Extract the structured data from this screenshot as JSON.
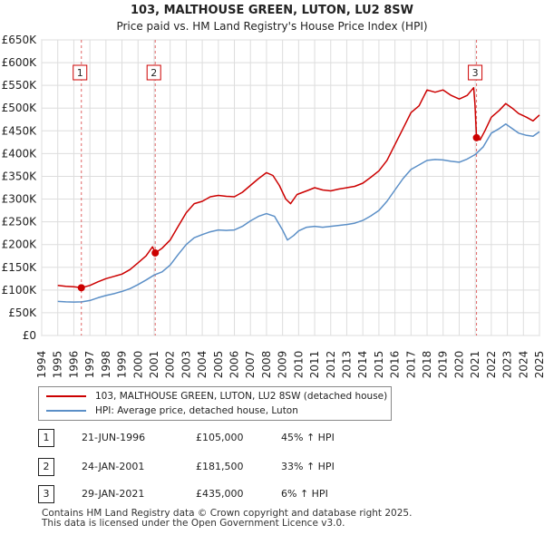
{
  "chart_data": {
    "type": "line",
    "title": "103, MALTHOUSE GREEN, LUTON, LU2 8SW",
    "subtitle": "Price paid vs. HM Land Registry's House Price Index (HPI)",
    "ylim": [
      0,
      650000
    ],
    "xlim": [
      1994,
      2025
    ],
    "y_ticks": [
      0,
      50000,
      100000,
      150000,
      200000,
      250000,
      300000,
      350000,
      400000,
      450000,
      500000,
      550000,
      600000,
      650000
    ],
    "y_tick_labels": [
      "£0",
      "£50K",
      "£100K",
      "£150K",
      "£200K",
      "£250K",
      "£300K",
      "£350K",
      "£400K",
      "£450K",
      "£500K",
      "£550K",
      "£600K",
      "£650K"
    ],
    "x_ticks": [
      1994,
      1995,
      1996,
      1997,
      1998,
      1999,
      2000,
      2001,
      2002,
      2003,
      2004,
      2005,
      2006,
      2007,
      2008,
      2009,
      2010,
      2011,
      2012,
      2013,
      2014,
      2015,
      2016,
      2017,
      2018,
      2019,
      2020,
      2021,
      2022,
      2023,
      2024,
      2025
    ],
    "grid": true,
    "series": [
      {
        "name": "103, MALTHOUSE GREEN, LUTON, LU2 8SW (detached house)",
        "color": "#cc0000",
        "points": [
          [
            1995.0,
            110000
          ],
          [
            1995.5,
            108000
          ],
          [
            1996.0,
            107000
          ],
          [
            1996.47,
            105000
          ],
          [
            1997.0,
            110000
          ],
          [
            1997.5,
            118000
          ],
          [
            1998.0,
            125000
          ],
          [
            1998.5,
            130000
          ],
          [
            1999.0,
            135000
          ],
          [
            1999.5,
            145000
          ],
          [
            2000.0,
            160000
          ],
          [
            2000.5,
            175000
          ],
          [
            2000.9,
            195000
          ],
          [
            2001.07,
            181500
          ],
          [
            2001.5,
            192000
          ],
          [
            2002.0,
            210000
          ],
          [
            2002.5,
            240000
          ],
          [
            2003.0,
            270000
          ],
          [
            2003.5,
            290000
          ],
          [
            2004.0,
            295000
          ],
          [
            2004.5,
            305000
          ],
          [
            2005.0,
            308000
          ],
          [
            2005.5,
            306000
          ],
          [
            2006.0,
            305000
          ],
          [
            2006.5,
            315000
          ],
          [
            2007.0,
            330000
          ],
          [
            2007.5,
            345000
          ],
          [
            2008.0,
            358000
          ],
          [
            2008.4,
            352000
          ],
          [
            2008.8,
            330000
          ],
          [
            2009.2,
            300000
          ],
          [
            2009.5,
            290000
          ],
          [
            2009.9,
            310000
          ],
          [
            2010.5,
            318000
          ],
          [
            2011.0,
            325000
          ],
          [
            2011.5,
            320000
          ],
          [
            2012.0,
            318000
          ],
          [
            2012.5,
            322000
          ],
          [
            2013.0,
            325000
          ],
          [
            2013.5,
            328000
          ],
          [
            2014.0,
            335000
          ],
          [
            2014.5,
            348000
          ],
          [
            2015.0,
            362000
          ],
          [
            2015.5,
            385000
          ],
          [
            2016.0,
            420000
          ],
          [
            2016.5,
            455000
          ],
          [
            2017.0,
            490000
          ],
          [
            2017.5,
            505000
          ],
          [
            2018.0,
            540000
          ],
          [
            2018.5,
            535000
          ],
          [
            2019.0,
            540000
          ],
          [
            2019.5,
            528000
          ],
          [
            2020.0,
            520000
          ],
          [
            2020.5,
            528000
          ],
          [
            2020.9,
            545000
          ],
          [
            2020.98,
            510000
          ],
          [
            2021.08,
            435000
          ],
          [
            2021.3,
            430000
          ],
          [
            2021.6,
            450000
          ],
          [
            2022.0,
            480000
          ],
          [
            2022.5,
            495000
          ],
          [
            2022.9,
            510000
          ],
          [
            2023.3,
            500000
          ],
          [
            2023.7,
            488000
          ],
          [
            2024.2,
            480000
          ],
          [
            2024.6,
            472000
          ],
          [
            2025.0,
            485000
          ]
        ]
      },
      {
        "name": "HPI: Average price, detached house, Luton",
        "color": "#5b8fc7",
        "points": [
          [
            1995.0,
            75000
          ],
          [
            1995.5,
            74000
          ],
          [
            1996.0,
            73500
          ],
          [
            1996.5,
            74000
          ],
          [
            1997.0,
            77000
          ],
          [
            1997.5,
            83000
          ],
          [
            1998.0,
            88000
          ],
          [
            1998.5,
            92000
          ],
          [
            1999.0,
            97000
          ],
          [
            1999.5,
            103000
          ],
          [
            2000.0,
            112000
          ],
          [
            2000.5,
            122000
          ],
          [
            2001.0,
            133000
          ],
          [
            2001.5,
            140000
          ],
          [
            2002.0,
            155000
          ],
          [
            2002.5,
            178000
          ],
          [
            2003.0,
            200000
          ],
          [
            2003.5,
            215000
          ],
          [
            2004.0,
            222000
          ],
          [
            2004.5,
            228000
          ],
          [
            2005.0,
            232000
          ],
          [
            2005.5,
            231000
          ],
          [
            2006.0,
            232000
          ],
          [
            2006.5,
            240000
          ],
          [
            2007.0,
            252000
          ],
          [
            2007.5,
            262000
          ],
          [
            2008.0,
            268000
          ],
          [
            2008.5,
            262000
          ],
          [
            2009.0,
            232000
          ],
          [
            2009.3,
            210000
          ],
          [
            2009.7,
            220000
          ],
          [
            2010.0,
            230000
          ],
          [
            2010.5,
            238000
          ],
          [
            2011.0,
            240000
          ],
          [
            2011.5,
            238000
          ],
          [
            2012.0,
            240000
          ],
          [
            2012.5,
            242000
          ],
          [
            2013.0,
            244000
          ],
          [
            2013.5,
            247000
          ],
          [
            2014.0,
            253000
          ],
          [
            2014.5,
            263000
          ],
          [
            2015.0,
            275000
          ],
          [
            2015.5,
            295000
          ],
          [
            2016.0,
            320000
          ],
          [
            2016.5,
            345000
          ],
          [
            2017.0,
            365000
          ],
          [
            2017.5,
            375000
          ],
          [
            2018.0,
            385000
          ],
          [
            2018.5,
            387000
          ],
          [
            2019.0,
            386000
          ],
          [
            2019.5,
            383000
          ],
          [
            2020.0,
            381000
          ],
          [
            2020.5,
            388000
          ],
          [
            2021.0,
            398000
          ],
          [
            2021.5,
            415000
          ],
          [
            2022.0,
            445000
          ],
          [
            2022.5,
            455000
          ],
          [
            2022.9,
            465000
          ],
          [
            2023.3,
            455000
          ],
          [
            2023.7,
            445000
          ],
          [
            2024.2,
            440000
          ],
          [
            2024.6,
            438000
          ],
          [
            2025.0,
            448000
          ]
        ]
      }
    ],
    "sales": [
      {
        "marker": "1",
        "x": 1996.47,
        "price": 105000,
        "date": "21-JUN-1996",
        "price_label": "£105,000",
        "hpi_label": "45% ↑ HPI"
      },
      {
        "marker": "2",
        "x": 2001.07,
        "price": 181500,
        "date": "24-JAN-2001",
        "price_label": "£181,500",
        "hpi_label": "33% ↑ HPI"
      },
      {
        "marker": "3",
        "x": 2021.08,
        "price": 435000,
        "date": "29-JAN-2021",
        "price_label": "£435,000",
        "hpi_label": "6% ↑ HPI"
      }
    ]
  },
  "legend": {
    "entries": [
      {
        "label": "103, MALTHOUSE GREEN, LUTON, LU2 8SW (detached house)",
        "color": "#cc0000"
      },
      {
        "label": "HPI: Average price, detached house, Luton",
        "color": "#5b8fc7"
      }
    ]
  },
  "footer": {
    "line1": "Contains HM Land Registry data © Crown copyright and database right 2025.",
    "line2": "This data is licensed under the Open Government Licence v3.0."
  }
}
